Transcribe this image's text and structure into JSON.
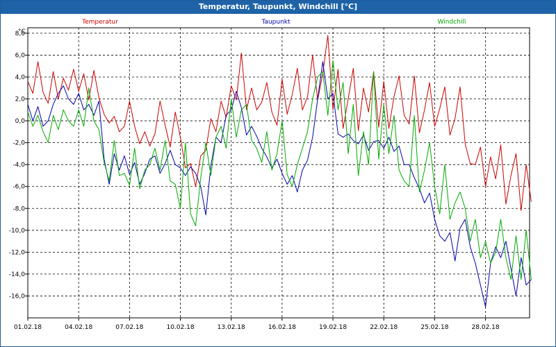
{
  "window": {
    "title": "Temperatur, Taupunkt, Windchill [°C]"
  },
  "chart_data": {
    "type": "line",
    "title": "Temperatur, Taupunkt, Windchill [°C]",
    "ylabel": "°C",
    "ylim": [
      -18,
      8.5
    ],
    "grid": true,
    "xlim_days": [
      0,
      29.6
    ],
    "x_ticks": [
      "01.02.18",
      "04.02.18",
      "07.02.18",
      "10.02.18",
      "13.02.18",
      "16.02.18",
      "19.02.18",
      "22.02.18",
      "25.02.18",
      "28.02.18"
    ],
    "y_ticks": [
      8,
      6,
      4,
      2,
      0,
      -2,
      -4,
      -6,
      -8,
      -10,
      -12,
      -14,
      -16
    ],
    "y_tick_labels": [
      "8,0",
      "6,0",
      "4,0",
      "2,0",
      "0,0",
      "-2,0",
      "-4,0",
      "-6,0",
      "-8,0",
      "-10,0",
      "-12,0",
      "-14,0",
      "-16,0"
    ],
    "legend_placement": "top",
    "series": [
      {
        "name": "Temperatur",
        "color": "#cc0000",
        "points": [
          [
            0,
            3.6
          ],
          [
            0.3,
            2.5
          ],
          [
            0.6,
            5.4
          ],
          [
            0.9,
            2.6
          ],
          [
            1.2,
            1.6
          ],
          [
            1.5,
            4.5
          ],
          [
            1.8,
            2.0
          ],
          [
            2.1,
            3.9
          ],
          [
            2.4,
            2.8
          ],
          [
            2.7,
            4.7
          ],
          [
            3.0,
            2.7
          ],
          [
            3.3,
            4.3
          ],
          [
            3.6,
            1.9
          ],
          [
            3.9,
            4.6
          ],
          [
            4.2,
            2.1
          ],
          [
            4.5,
            0.6
          ],
          [
            4.8,
            -0.2
          ],
          [
            5.1,
            0.4
          ],
          [
            5.4,
            -1.0
          ],
          [
            5.7,
            -0.5
          ],
          [
            6.0,
            1.8
          ],
          [
            6.3,
            -0.5
          ],
          [
            6.6,
            -2.1
          ],
          [
            6.9,
            -1.0
          ],
          [
            7.2,
            -2.3
          ],
          [
            7.5,
            -1.2
          ],
          [
            7.8,
            1.8
          ],
          [
            8.1,
            -0.4
          ],
          [
            8.4,
            -2.4
          ],
          [
            8.7,
            0.8
          ],
          [
            9.0,
            -1.5
          ],
          [
            9.3,
            -4.3
          ],
          [
            9.6,
            -3.9
          ],
          [
            9.9,
            -6.0
          ],
          [
            10.2,
            -3.2
          ],
          [
            10.5,
            -2.7
          ],
          [
            10.8,
            0.2
          ],
          [
            11.1,
            -1.0
          ],
          [
            11.4,
            1.8
          ],
          [
            11.7,
            0.3
          ],
          [
            12.0,
            3.2
          ],
          [
            12.3,
            1.9
          ],
          [
            12.6,
            6.2
          ],
          [
            12.9,
            1.0
          ],
          [
            13.2,
            3.0
          ],
          [
            13.5,
            1.0
          ],
          [
            13.8,
            1.7
          ],
          [
            14.1,
            3.5
          ],
          [
            14.4,
            0.8
          ],
          [
            14.7,
            -0.4
          ],
          [
            15.0,
            3.8
          ],
          [
            15.3,
            0.6
          ],
          [
            15.6,
            2.4
          ],
          [
            15.9,
            4.8
          ],
          [
            16.2,
            1.0
          ],
          [
            16.5,
            2.2
          ],
          [
            16.8,
            6.0
          ],
          [
            17.1,
            1.9
          ],
          [
            17.4,
            4.3
          ],
          [
            17.7,
            7.8
          ],
          [
            18.0,
            1.0
          ],
          [
            18.3,
            4.7
          ],
          [
            18.6,
            -0.7
          ],
          [
            18.9,
            2.0
          ],
          [
            19.2,
            4.8
          ],
          [
            19.5,
            -0.9
          ],
          [
            19.8,
            3.0
          ],
          [
            20.1,
            0.8
          ],
          [
            20.4,
            4.5
          ],
          [
            20.7,
            -0.6
          ],
          [
            21.0,
            3.6
          ],
          [
            21.3,
            -0.7
          ],
          [
            21.6,
            2.2
          ],
          [
            21.9,
            4.1
          ],
          [
            22.2,
            0.5
          ],
          [
            22.5,
            -0.3
          ],
          [
            22.8,
            4.1
          ],
          [
            23.1,
            -1.1
          ],
          [
            23.4,
            1.0
          ],
          [
            23.7,
            3.5
          ],
          [
            24.0,
            -0.5
          ],
          [
            24.3,
            1.1
          ],
          [
            24.6,
            3.1
          ],
          [
            24.9,
            -1.3
          ],
          [
            25.2,
            0.2
          ],
          [
            25.5,
            3.1
          ],
          [
            25.8,
            -2.1
          ],
          [
            26.1,
            -3.9
          ],
          [
            26.4,
            -4.0
          ],
          [
            26.7,
            -2.4
          ],
          [
            27.0,
            -6.0
          ],
          [
            27.3,
            -3.3
          ],
          [
            27.6,
            -5.3
          ],
          [
            27.9,
            -2.2
          ],
          [
            28.2,
            -7.6
          ],
          [
            28.5,
            -5.0
          ],
          [
            28.8,
            -3.0
          ],
          [
            29.1,
            -8.2
          ],
          [
            29.4,
            -4.0
          ],
          [
            29.7,
            -7.4
          ]
        ]
      },
      {
        "name": "Taupunkt",
        "color": "#0000aa",
        "points": [
          [
            0,
            1.5
          ],
          [
            0.3,
            0.0
          ],
          [
            0.6,
            1.3
          ],
          [
            0.9,
            -0.5
          ],
          [
            1.2,
            0.0
          ],
          [
            1.5,
            1.5
          ],
          [
            1.8,
            2.5
          ],
          [
            2.1,
            3.2
          ],
          [
            2.4,
            2.0
          ],
          [
            2.7,
            1.5
          ],
          [
            3.0,
            2.5
          ],
          [
            3.3,
            1.0
          ],
          [
            3.6,
            1.5
          ],
          [
            3.9,
            0.5
          ],
          [
            4.2,
            1.8
          ],
          [
            4.5,
            -3.5
          ],
          [
            4.8,
            -5.8
          ],
          [
            5.1,
            -3.0
          ],
          [
            5.4,
            -4.5
          ],
          [
            5.7,
            -3.2
          ],
          [
            6.0,
            -4.9
          ],
          [
            6.3,
            -3.8
          ],
          [
            6.6,
            -5.8
          ],
          [
            6.9,
            -4.8
          ],
          [
            7.2,
            -3.5
          ],
          [
            7.5,
            -3.2
          ],
          [
            7.8,
            -4.8
          ],
          [
            8.1,
            -3.9
          ],
          [
            8.4,
            -2.7
          ],
          [
            8.7,
            -4.0
          ],
          [
            9.0,
            -4.3
          ],
          [
            9.3,
            -5.0
          ],
          [
            9.6,
            -4.2
          ],
          [
            9.9,
            -4.8
          ],
          [
            10.2,
            -6.0
          ],
          [
            10.5,
            -8.6
          ],
          [
            10.8,
            -4.1
          ],
          [
            11.1,
            -1.5
          ],
          [
            11.4,
            -2.0
          ],
          [
            11.7,
            0.5
          ],
          [
            12.0,
            1.0
          ],
          [
            12.3,
            2.7
          ],
          [
            12.6,
            1.2
          ],
          [
            12.9,
            -1.3
          ],
          [
            13.2,
            -0.5
          ],
          [
            13.5,
            -1.4
          ],
          [
            13.8,
            -2.5
          ],
          [
            14.1,
            -3.3
          ],
          [
            14.4,
            -4.3
          ],
          [
            14.7,
            -3.5
          ],
          [
            15.0,
            -4.8
          ],
          [
            15.3,
            -5.8
          ],
          [
            15.6,
            -5.0
          ],
          [
            15.9,
            -6.5
          ],
          [
            16.2,
            -4.5
          ],
          [
            16.5,
            -3.6
          ],
          [
            16.8,
            -1.5
          ],
          [
            17.1,
            2.0
          ],
          [
            17.4,
            5.4
          ],
          [
            17.7,
            2.0
          ],
          [
            18.0,
            2.5
          ],
          [
            18.3,
            -1.2
          ],
          [
            18.6,
            -1.5
          ],
          [
            18.9,
            -1.2
          ],
          [
            19.2,
            -1.8
          ],
          [
            19.5,
            -2.1
          ],
          [
            19.8,
            -1.3
          ],
          [
            20.1,
            -2.7
          ],
          [
            20.4,
            -1.9
          ],
          [
            20.7,
            -1.8
          ],
          [
            21.0,
            -2.5
          ],
          [
            21.3,
            -1.5
          ],
          [
            21.6,
            -2.8
          ],
          [
            21.9,
            -2.3
          ],
          [
            22.2,
            -4.0
          ],
          [
            22.5,
            -4.0
          ],
          [
            22.8,
            -5.2
          ],
          [
            23.1,
            -6.2
          ],
          [
            23.4,
            -7.5
          ],
          [
            23.7,
            -6.6
          ],
          [
            24.0,
            -9.0
          ],
          [
            24.3,
            -10.5
          ],
          [
            24.6,
            -11.0
          ],
          [
            24.9,
            -10.2
          ],
          [
            25.2,
            -12.8
          ],
          [
            25.5,
            -9.8
          ],
          [
            25.8,
            -9.0
          ],
          [
            26.1,
            -11.5
          ],
          [
            26.4,
            -13.0
          ],
          [
            26.7,
            -15.0
          ],
          [
            27.0,
            -17.0
          ],
          [
            27.3,
            -13.0
          ],
          [
            27.6,
            -11.5
          ],
          [
            27.9,
            -12.5
          ],
          [
            28.2,
            -11.0
          ],
          [
            28.5,
            -13.5
          ],
          [
            28.8,
            -16.0
          ],
          [
            29.1,
            -12.5
          ],
          [
            29.4,
            -15.0
          ],
          [
            29.7,
            -14.5
          ]
        ]
      },
      {
        "name": "Windchill",
        "color": "#00aa00",
        "points": [
          [
            0,
            0.8
          ],
          [
            0.3,
            -0.5
          ],
          [
            0.6,
            0.5
          ],
          [
            0.9,
            -1.0
          ],
          [
            1.2,
            -2.0
          ],
          [
            1.5,
            0.5
          ],
          [
            1.8,
            -0.8
          ],
          [
            2.1,
            1.0
          ],
          [
            2.4,
            0.0
          ],
          [
            2.7,
            -0.5
          ],
          [
            3.0,
            1.0
          ],
          [
            3.3,
            -0.5
          ],
          [
            3.6,
            3.0
          ],
          [
            3.9,
            0.0
          ],
          [
            4.2,
            -0.8
          ],
          [
            4.5,
            -3.8
          ],
          [
            4.8,
            -5.5
          ],
          [
            5.1,
            -1.8
          ],
          [
            5.4,
            -5.0
          ],
          [
            5.7,
            -4.8
          ],
          [
            6.0,
            -5.9
          ],
          [
            6.3,
            -2.5
          ],
          [
            6.6,
            -6.2
          ],
          [
            6.9,
            -4.5
          ],
          [
            7.2,
            -4.0
          ],
          [
            7.5,
            -2.5
          ],
          [
            7.8,
            -4.5
          ],
          [
            8.1,
            -1.8
          ],
          [
            8.4,
            -5.5
          ],
          [
            8.7,
            -5.8
          ],
          [
            9.0,
            -8.0
          ],
          [
            9.3,
            -2.0
          ],
          [
            9.6,
            -8.5
          ],
          [
            9.9,
            -9.6
          ],
          [
            10.2,
            -5.2
          ],
          [
            10.5,
            -2.0
          ],
          [
            10.8,
            -5.0
          ],
          [
            11.1,
            -1.5
          ],
          [
            11.4,
            -0.5
          ],
          [
            11.7,
            -2.5
          ],
          [
            12.0,
            2.0
          ],
          [
            12.3,
            -1.5
          ],
          [
            12.6,
            1.0
          ],
          [
            12.9,
            1.5
          ],
          [
            13.2,
            -1.8
          ],
          [
            13.5,
            -2.5
          ],
          [
            13.8,
            -3.8
          ],
          [
            14.1,
            -1.0
          ],
          [
            14.4,
            -4.5
          ],
          [
            14.7,
            -3.0
          ],
          [
            15.0,
            0.0
          ],
          [
            15.3,
            -4.9
          ],
          [
            15.6,
            -6.0
          ],
          [
            15.9,
            -4.0
          ],
          [
            16.2,
            -2.5
          ],
          [
            16.5,
            -1.0
          ],
          [
            16.8,
            2.0
          ],
          [
            17.1,
            4.0
          ],
          [
            17.4,
            4.5
          ],
          [
            17.7,
            0.5
          ],
          [
            18.0,
            5.5
          ],
          [
            18.3,
            1.0
          ],
          [
            18.6,
            3.5
          ],
          [
            18.9,
            -3.0
          ],
          [
            19.2,
            1.5
          ],
          [
            19.5,
            -5.0
          ],
          [
            19.8,
            -1.0
          ],
          [
            20.1,
            -4.0
          ],
          [
            20.4,
            4.5
          ],
          [
            20.7,
            -3.5
          ],
          [
            21.0,
            1.5
          ],
          [
            21.3,
            -3.0
          ],
          [
            21.6,
            0.5
          ],
          [
            21.9,
            -4.5
          ],
          [
            22.2,
            -5.5
          ],
          [
            22.5,
            -6.0
          ],
          [
            22.8,
            0.5
          ],
          [
            23.1,
            -6.5
          ],
          [
            23.4,
            -4.5
          ],
          [
            23.7,
            -2.0
          ],
          [
            24.0,
            -6.0
          ],
          [
            24.3,
            -8.5
          ],
          [
            24.6,
            -4.0
          ],
          [
            24.9,
            -9.0
          ],
          [
            25.2,
            -7.5
          ],
          [
            25.5,
            -6.5
          ],
          [
            25.8,
            -8.0
          ],
          [
            26.1,
            -11.0
          ],
          [
            26.4,
            -9.0
          ],
          [
            26.7,
            -12.5
          ],
          [
            27.0,
            -11.0
          ],
          [
            27.3,
            -13.0
          ],
          [
            27.6,
            -12.0
          ],
          [
            27.9,
            -9.0
          ],
          [
            28.2,
            -12.5
          ],
          [
            28.5,
            -14.5
          ],
          [
            28.8,
            -10.5
          ],
          [
            29.1,
            -14.5
          ],
          [
            29.4,
            -10.0
          ],
          [
            29.7,
            -14.5
          ]
        ]
      }
    ]
  }
}
